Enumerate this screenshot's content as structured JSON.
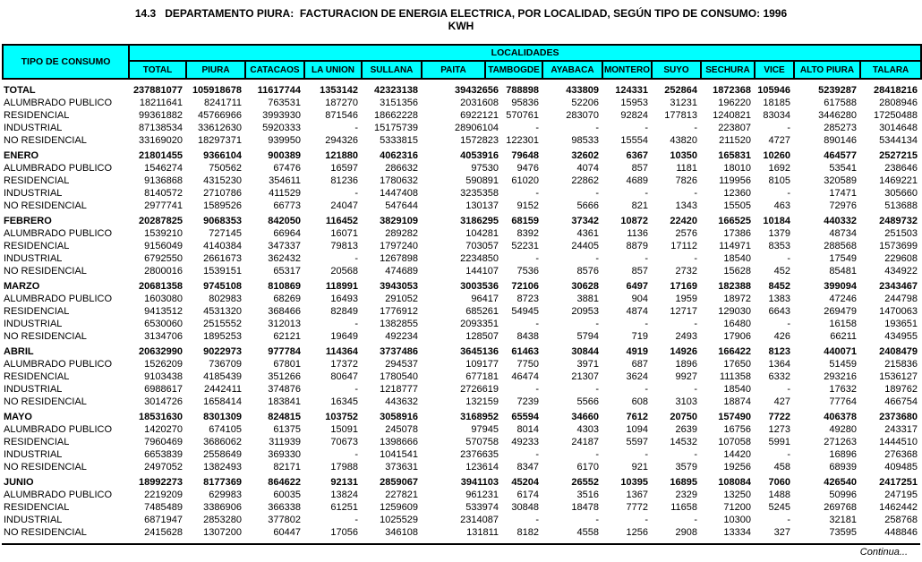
{
  "page": {
    "title": "14.3   DEPARTAMENTO PIURA:  FACTURACION DE ENERGIA ELECTRICA, POR LOCALIDAD, SEGÚN TIPO DE CONSUMO: 1996",
    "subtitle": "KWH",
    "footer": "Continua...",
    "colors": {
      "header_bg": "#00ffff",
      "border": "#000000",
      "text": "#000000"
    }
  },
  "table": {
    "corner_label": "TIPO DE CONSUMO",
    "group_header": "LOCALIDADES",
    "columns": [
      "TOTAL",
      "PIURA",
      "CATACAOS",
      "LA UNION",
      "SULLANA",
      "PAITA",
      "TAMBOGDE",
      "AYABACA",
      "MONTERO",
      "SUYO",
      "SECHURA",
      "VICE",
      "ALTO PIURA",
      "TALARA"
    ],
    "groups": [
      {
        "label": "TOTAL",
        "values": [
          "237881077",
          "105918678",
          "11617744",
          "1353142",
          "42323138",
          "39432656",
          "788898",
          "433809",
          "124331",
          "252864",
          "1872368",
          "105946",
          "5239287",
          "28418216"
        ],
        "rows": [
          {
            "label": "ALUMBRADO PUBLICO",
            "values": [
              "18211641",
              "8241711",
              "763531",
              "187270",
              "3151356",
              "2031608",
              "95836",
              "52206",
              "15953",
              "31231",
              "196220",
              "18185",
              "617588",
              "2808946"
            ]
          },
          {
            "label": "RESIDENCIAL",
            "values": [
              "99361882",
              "45766966",
              "3993930",
              "871546",
              "18662228",
              "6922121",
              "570761",
              "283070",
              "92824",
              "177813",
              "1240821",
              "83034",
              "3446280",
              "17250488"
            ]
          },
          {
            "label": "INDUSTRIAL",
            "values": [
              "87138534",
              "33612630",
              "5920333",
              "-",
              "15175739",
              "28906104",
              "-",
              "-",
              "-",
              "-",
              "223807",
              "-",
              "285273",
              "3014648"
            ]
          },
          {
            "label": "NO RESIDENCIAL",
            "values": [
              "33169020",
              "18297371",
              "939950",
              "294326",
              "5333815",
              "1572823",
              "122301",
              "98533",
              "15554",
              "43820",
              "211520",
              "4727",
              "890146",
              "5344134"
            ]
          }
        ]
      },
      {
        "label": "ENERO",
        "values": [
          "21801455",
          "9366104",
          "900389",
          "121880",
          "4062316",
          "4053916",
          "79648",
          "32602",
          "6367",
          "10350",
          "165831",
          "10260",
          "464577",
          "2527215"
        ],
        "rows": [
          {
            "label": "ALUMBRADO PUBLICO",
            "values": [
              "1546274",
              "750562",
              "67476",
              "16597",
              "286632",
              "97530",
              "9476",
              "4074",
              "857",
              "1181",
              "18010",
              "1692",
              "53541",
              "238646"
            ]
          },
          {
            "label": "RESIDENCIAL",
            "values": [
              "9136868",
              "4315230",
              "354611",
              "81236",
              "1780632",
              "590891",
              "61020",
              "22862",
              "4689",
              "7826",
              "119956",
              "8105",
              "320589",
              "1469221"
            ]
          },
          {
            "label": "INDUSTRIAL",
            "values": [
              "8140572",
              "2710786",
              "411529",
              "-",
              "1447408",
              "3235358",
              "-",
              "-",
              "-",
              "-",
              "12360",
              "-",
              "17471",
              "305660"
            ]
          },
          {
            "label": "NO RESIDENCIAL",
            "values": [
              "2977741",
              "1589526",
              "66773",
              "24047",
              "547644",
              "130137",
              "9152",
              "5666",
              "821",
              "1343",
              "15505",
              "463",
              "72976",
              "513688"
            ]
          }
        ]
      },
      {
        "label": "FEBRERO",
        "values": [
          "20287825",
          "9068353",
          "842050",
          "116452",
          "3829109",
          "3186295",
          "68159",
          "37342",
          "10872",
          "22420",
          "166525",
          "10184",
          "440332",
          "2489732"
        ],
        "rows": [
          {
            "label": "ALUMBRADO PUBLICO",
            "values": [
              "1539210",
              "727145",
              "66964",
              "16071",
              "289282",
              "104281",
              "8392",
              "4361",
              "1136",
              "2576",
              "17386",
              "1379",
              "48734",
              "251503"
            ]
          },
          {
            "label": "RESIDENCIAL",
            "values": [
              "9156049",
              "4140384",
              "347337",
              "79813",
              "1797240",
              "703057",
              "52231",
              "24405",
              "8879",
              "17112",
              "114971",
              "8353",
              "288568",
              "1573699"
            ]
          },
          {
            "label": "INDUSTRIAL",
            "values": [
              "6792550",
              "2661673",
              "362432",
              "-",
              "1267898",
              "2234850",
              "-",
              "-",
              "-",
              "-",
              "18540",
              "-",
              "17549",
              "229608"
            ]
          },
          {
            "label": "NO RESIDENCIAL",
            "values": [
              "2800016",
              "1539151",
              "65317",
              "20568",
              "474689",
              "144107",
              "7536",
              "8576",
              "857",
              "2732",
              "15628",
              "452",
              "85481",
              "434922"
            ]
          }
        ]
      },
      {
        "label": "MARZO",
        "values": [
          "20681358",
          "9745108",
          "810869",
          "118991",
          "3943053",
          "3003536",
          "72106",
          "30628",
          "6497",
          "17169",
          "182388",
          "8452",
          "399094",
          "2343467"
        ],
        "rows": [
          {
            "label": "ALUMBRADO PUBLICO",
            "values": [
              "1603080",
              "802983",
              "68269",
              "16493",
              "291052",
              "96417",
              "8723",
              "3881",
              "904",
              "1959",
              "18972",
              "1383",
              "47246",
              "244798"
            ]
          },
          {
            "label": "RESIDENCIAL",
            "values": [
              "9413512",
              "4531320",
              "368466",
              "82849",
              "1776912",
              "685261",
              "54945",
              "20953",
              "4874",
              "12717",
              "129030",
              "6643",
              "269479",
              "1470063"
            ]
          },
          {
            "label": "INDUSTRIAL",
            "values": [
              "6530060",
              "2515552",
              "312013",
              "-",
              "1382855",
              "2093351",
              "-",
              "-",
              "-",
              "-",
              "16480",
              "-",
              "16158",
              "193651"
            ]
          },
          {
            "label": "NO RESIDENCIAL",
            "values": [
              "3134706",
              "1895253",
              "62121",
              "19649",
              "492234",
              "128507",
              "8438",
              "5794",
              "719",
              "2493",
              "17906",
              "426",
              "66211",
              "434955"
            ]
          }
        ]
      },
      {
        "label": "ABRIL",
        "values": [
          "20632990",
          "9022973",
          "977784",
          "114364",
          "3737486",
          "3645136",
          "61463",
          "30844",
          "4919",
          "14926",
          "166422",
          "8123",
          "440071",
          "2408479"
        ],
        "rows": [
          {
            "label": "ALUMBRADO PUBLICO",
            "values": [
              "1526209",
              "736709",
              "67801",
              "17372",
              "294537",
              "109177",
              "7750",
              "3971",
              "687",
              "1896",
              "17650",
              "1364",
              "51459",
              "215836"
            ]
          },
          {
            "label": "RESIDENCIAL",
            "values": [
              "9103438",
              "4185439",
              "351266",
              "80647",
              "1780540",
              "677181",
              "46474",
              "21307",
              "3624",
              "9927",
              "111358",
              "6332",
              "293216",
              "1536127"
            ]
          },
          {
            "label": "INDUSTRIAL",
            "values": [
              "6988617",
              "2442411",
              "374876",
              "-",
              "1218777",
              "2726619",
              "-",
              "-",
              "-",
              "-",
              "18540",
              "-",
              "17632",
              "189762"
            ]
          },
          {
            "label": "NO RESIDENCIAL",
            "values": [
              "3014726",
              "1658414",
              "183841",
              "16345",
              "443632",
              "132159",
              "7239",
              "5566",
              "608",
              "3103",
              "18874",
              "427",
              "77764",
              "466754"
            ]
          }
        ]
      },
      {
        "label": "MAYO",
        "values": [
          "18531630",
          "8301309",
          "824815",
          "103752",
          "3058916",
          "3168952",
          "65594",
          "34660",
          "7612",
          "20750",
          "157490",
          "7722",
          "406378",
          "2373680"
        ],
        "rows": [
          {
            "label": "ALUMBRADO PUBLICO",
            "values": [
              "1420270",
              "674105",
              "61375",
              "15091",
              "245078",
              "97945",
              "8014",
              "4303",
              "1094",
              "2639",
              "16756",
              "1273",
              "49280",
              "243317"
            ]
          },
          {
            "label": "RESIDENCIAL",
            "values": [
              "7960469",
              "3686062",
              "311939",
              "70673",
              "1398666",
              "570758",
              "49233",
              "24187",
              "5597",
              "14532",
              "107058",
              "5991",
              "271263",
              "1444510"
            ]
          },
          {
            "label": "INDUSTRIAL",
            "values": [
              "6653839",
              "2558649",
              "369330",
              "-",
              "1041541",
              "2376635",
              "-",
              "-",
              "-",
              "-",
              "14420",
              "-",
              "16896",
              "276368"
            ]
          },
          {
            "label": "NO RESIDENCIAL",
            "values": [
              "2497052",
              "1382493",
              "82171",
              "17988",
              "373631",
              "123614",
              "8347",
              "6170",
              "921",
              "3579",
              "19256",
              "458",
              "68939",
              "409485"
            ]
          }
        ]
      },
      {
        "label": "JUNIO",
        "values": [
          "18992273",
          "8177369",
          "864622",
          "92131",
          "2859067",
          "3941103",
          "45204",
          "26552",
          "10395",
          "16895",
          "108084",
          "7060",
          "426540",
          "2417251"
        ],
        "rows": [
          {
            "label": "ALUMBRADO PUBLICO",
            "values": [
              "2219209",
              "629983",
              "60035",
              "13824",
              "227821",
              "961231",
              "6174",
              "3516",
              "1367",
              "2329",
              "13250",
              "1488",
              "50996",
              "247195"
            ]
          },
          {
            "label": "RESIDENCIAL",
            "values": [
              "7485489",
              "3386906",
              "366338",
              "61251",
              "1259609",
              "533974",
              "30848",
              "18478",
              "7772",
              "11658",
              "71200",
              "5245",
              "269768",
              "1462442"
            ]
          },
          {
            "label": "INDUSTRIAL",
            "values": [
              "6871947",
              "2853280",
              "377802",
              "-",
              "1025529",
              "2314087",
              "-",
              "-",
              "-",
              "-",
              "10300",
              "-",
              "32181",
              "258768"
            ]
          },
          {
            "label": "NO RESIDENCIAL",
            "values": [
              "2415628",
              "1307200",
              "60447",
              "17056",
              "346108",
              "131811",
              "8182",
              "4558",
              "1256",
              "2908",
              "13334",
              "327",
              "73595",
              "448846"
            ]
          }
        ]
      }
    ]
  }
}
